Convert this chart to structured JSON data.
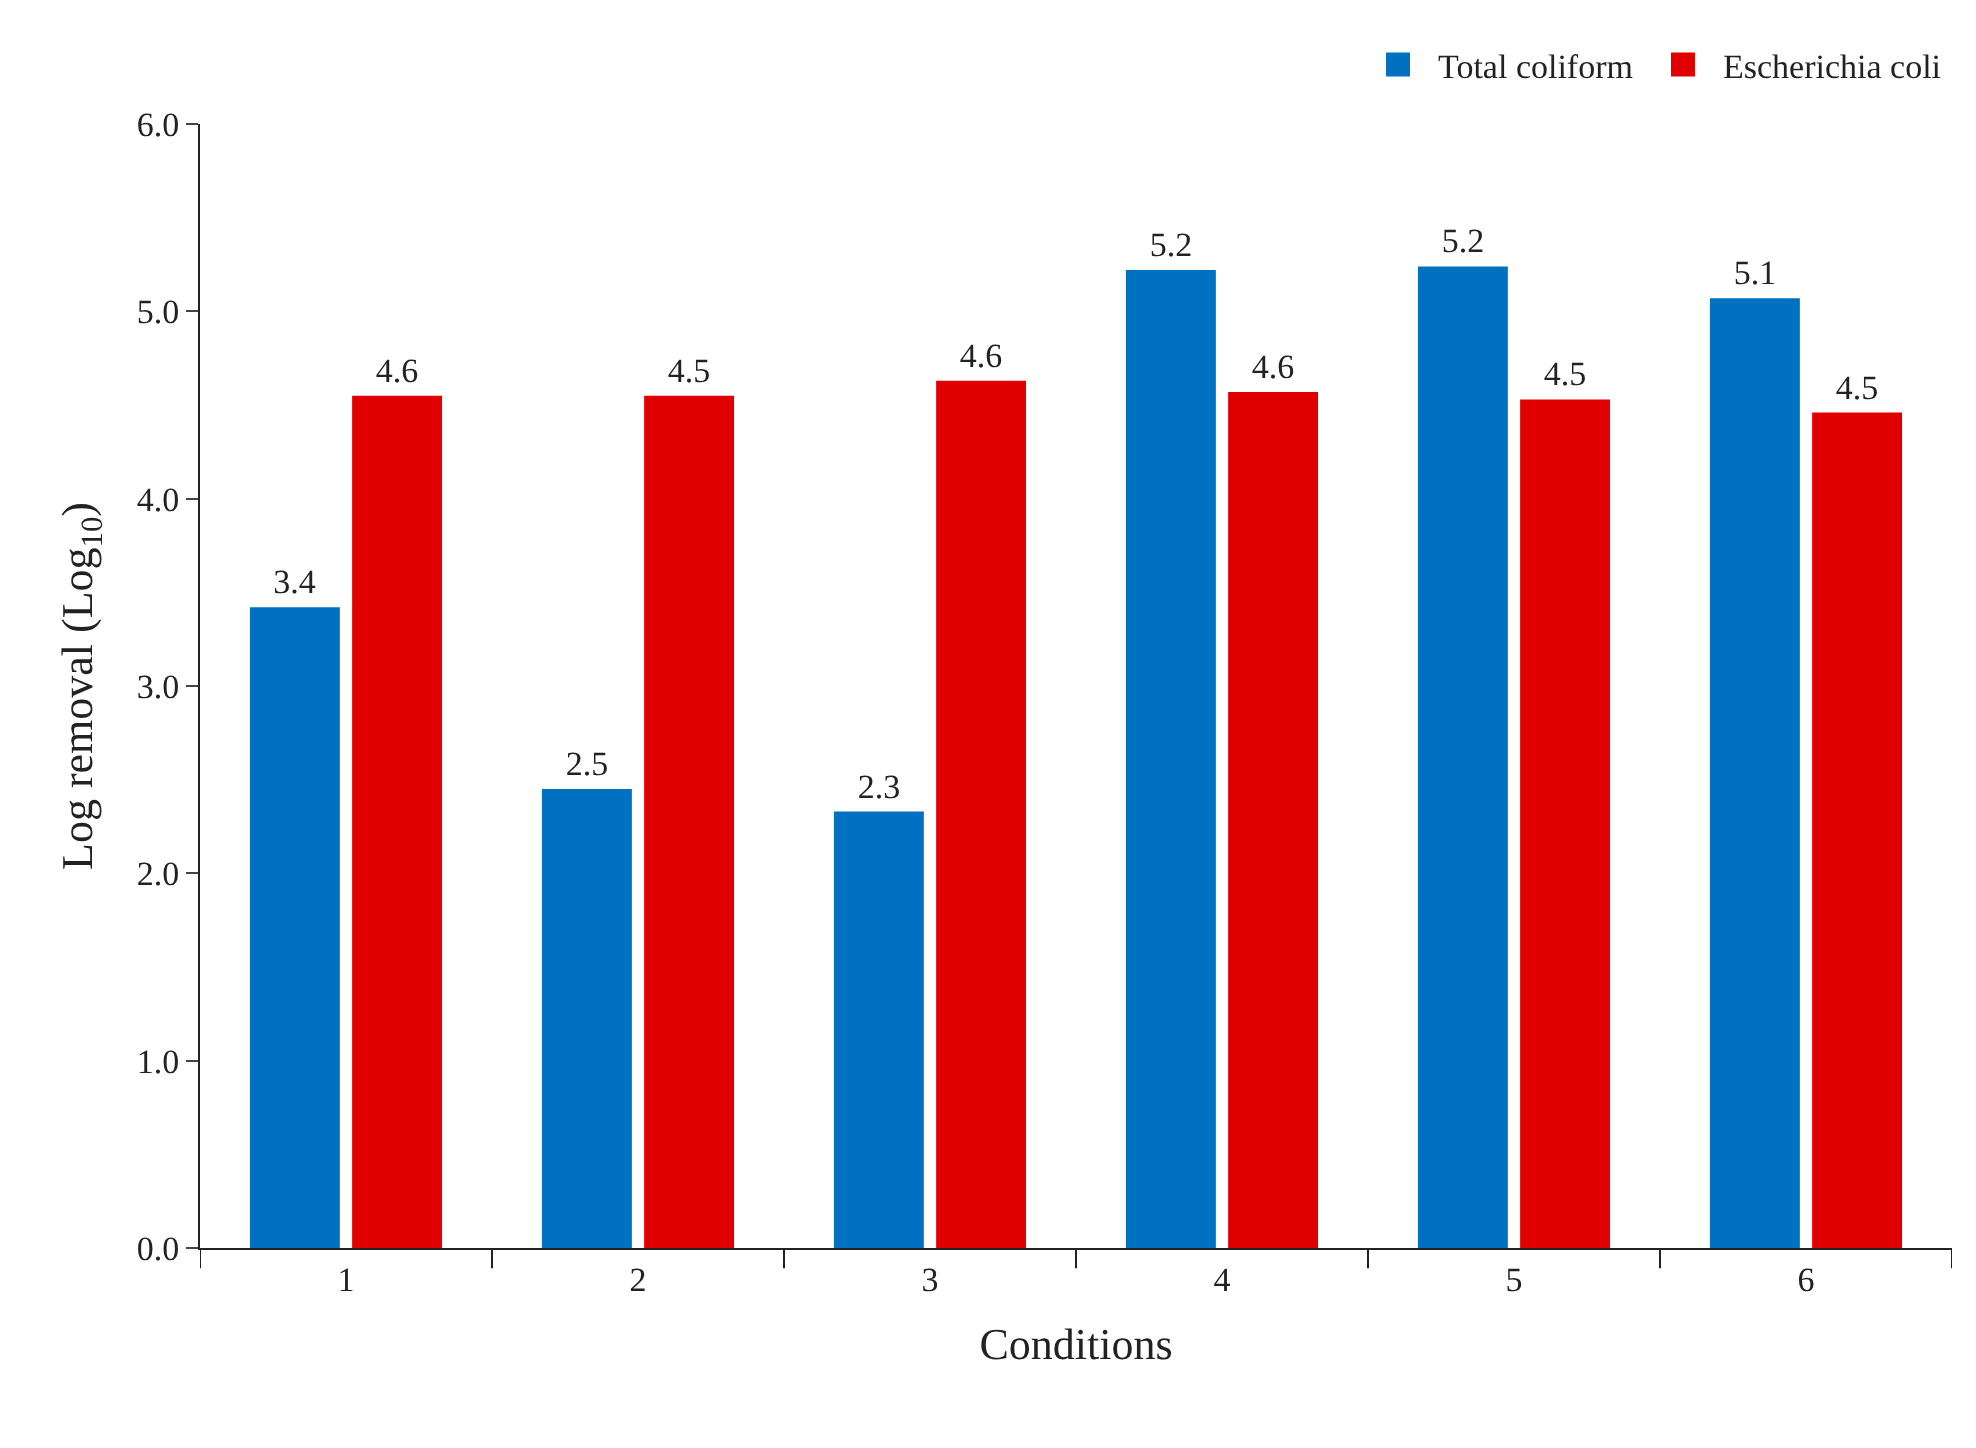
{
  "chart_data": {
    "type": "bar",
    "xlabel": "Conditions",
    "ylabel": "Log removal (Log$_{10}$)",
    "categories": [
      "1",
      "2",
      "3",
      "4",
      "5",
      "6"
    ],
    "series": [
      {
        "name": "Total coliform",
        "color": "#0070c0",
        "values": [
          3.42,
          2.45,
          2.33,
          5.22,
          5.24,
          5.07
        ],
        "value_labels": [
          "3.4",
          "2.5",
          "2.3",
          "5.2",
          "5.2",
          "5.1"
        ]
      },
      {
        "name": "Escherichia coli",
        "color": "#e00000",
        "values": [
          4.55,
          4.55,
          4.63,
          4.57,
          4.53,
          4.46
        ],
        "value_labels": [
          "4.6",
          "4.5",
          "4.6",
          "4.6",
          "4.5",
          "4.5"
        ]
      }
    ],
    "ylim": [
      0,
      6
    ],
    "yticks": [
      {
        "value": 0,
        "label": "0.0"
      },
      {
        "value": 1,
        "label": "1.0"
      },
      {
        "value": 2,
        "label": "2.0"
      },
      {
        "value": 3,
        "label": "3.0"
      },
      {
        "value": 4,
        "label": "4.0"
      },
      {
        "value": 5,
        "label": "5.0"
      },
      {
        "value": 6,
        "label": "6.0"
      }
    ],
    "grid": false,
    "legend": "top right"
  }
}
